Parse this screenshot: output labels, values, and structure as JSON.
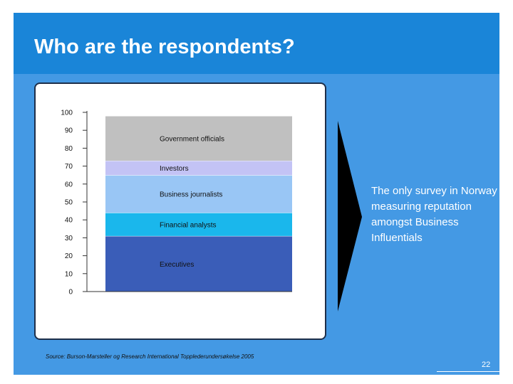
{
  "slide": {
    "title": "Who are the respondents?",
    "side_text": "The only survey in Norway measuring reputation amongst Business Influentials",
    "source": "Source: Burson-Marsteller og Research International Toppleder­undersøkelse 2005",
    "page_number": "22"
  },
  "colors": {
    "background": "#4499e4",
    "title_bar": "#1a85d8",
    "text": "#ffffff"
  },
  "chart_data": {
    "type": "bar",
    "stacked": true,
    "ylim": [
      0,
      100
    ],
    "yticks": [
      "0",
      "10",
      "20",
      "30",
      "40",
      "50",
      "60",
      "70",
      "80",
      "90",
      "100"
    ],
    "segments": [
      {
        "name": "Executives",
        "from": 0,
        "to": 31,
        "color": "#3a5db8"
      },
      {
        "name": "Financial analysts",
        "from": 31,
        "to": 44,
        "color": "#1ab7ec"
      },
      {
        "name": "Business journalists",
        "from": 44,
        "to": 65,
        "color": "#99c6f5"
      },
      {
        "name": "Investors",
        "from": 65,
        "to": 73,
        "color": "#c3c3f5"
      },
      {
        "name": "Government officials",
        "from": 73,
        "to": 98,
        "color": "#c0c0c0"
      }
    ]
  }
}
